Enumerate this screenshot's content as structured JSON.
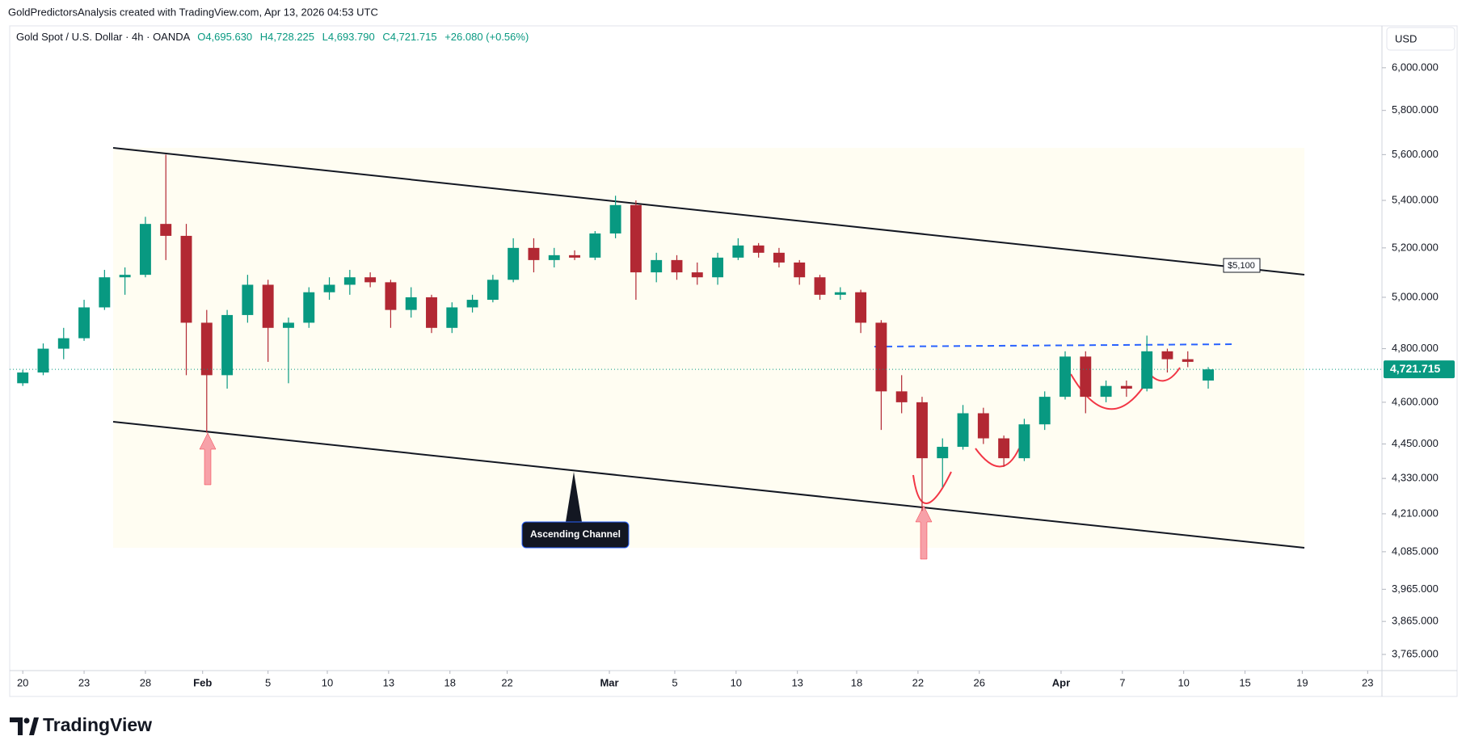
{
  "header": {
    "caption": "GoldPredictorsAnalysis created with TradingView.com, Apr 13, 2026 04:53 UTC",
    "symbol": "Gold Spot / U.S. Dollar · 4h · OANDA",
    "open": "O4,695.630",
    "high": "H4,728.225",
    "low": "L4,693.790",
    "close": "C4,721.715",
    "change": "+26.080 (+0.56%)"
  },
  "chart_data": {
    "type": "candlestick",
    "currency": "USD",
    "log_scale": true,
    "grid": false,
    "up_color": "#089981",
    "down_color": "#b22833",
    "x": [
      0,
      1,
      2,
      3,
      4,
      5,
      6,
      7,
      8,
      9,
      10,
      11,
      12,
      13,
      14,
      15,
      16,
      17,
      18,
      19,
      20,
      21,
      22,
      23,
      24,
      25,
      26,
      27,
      28,
      29,
      30,
      31,
      32,
      33,
      34,
      35,
      36,
      37,
      38,
      39,
      40,
      41,
      42,
      43,
      44,
      45,
      46,
      47,
      48,
      49,
      50,
      51,
      52,
      53,
      54,
      55,
      56,
      57,
      58
    ],
    "open": [
      4670,
      4710,
      4800,
      4840,
      4960,
      5080,
      5090,
      5300,
      5250,
      4900,
      4700,
      4930,
      5050,
      4880,
      4900,
      5020,
      5050,
      5080,
      5060,
      4950,
      5000,
      4880,
      4960,
      4990,
      5070,
      5200,
      5150,
      5170,
      5160,
      5260,
      5380,
      5100,
      5150,
      5100,
      5080,
      5160,
      5210,
      5180,
      5140,
      5080,
      5010,
      5020,
      4900,
      4640,
      4600,
      4400,
      4440,
      4560,
      4470,
      4400,
      4520,
      4620,
      4770,
      4620,
      4660,
      4650,
      4790,
      4760,
      4680
    ],
    "high": [
      4720,
      4820,
      4880,
      4990,
      5110,
      5120,
      5330,
      5600,
      5300,
      4950,
      4950,
      5090,
      5070,
      4920,
      5040,
      5080,
      5110,
      5100,
      5070,
      5040,
      5010,
      4980,
      5010,
      5090,
      5240,
      5240,
      5200,
      5190,
      5270,
      5420,
      5400,
      5180,
      5170,
      5140,
      5180,
      5240,
      5220,
      5200,
      5150,
      5090,
      5040,
      5030,
      4910,
      4700,
      4620,
      4470,
      4590,
      4580,
      4480,
      4540,
      4640,
      4790,
      4790,
      4680,
      4680,
      4850,
      4800,
      4790,
      4730
    ],
    "low": [
      4660,
      4700,
      4760,
      4830,
      4950,
      5010,
      5080,
      5150,
      4700,
      4490,
      4650,
      4900,
      4750,
      4670,
      4880,
      4990,
      5010,
      5040,
      4880,
      4920,
      4860,
      4860,
      4940,
      4980,
      5060,
      5100,
      5120,
      5150,
      5150,
      5240,
      4990,
      5060,
      5070,
      5050,
      5050,
      5150,
      5160,
      5120,
      5050,
      4990,
      4990,
      4860,
      4500,
      4560,
      4220,
      4300,
      4430,
      4450,
      4370,
      4390,
      4500,
      4610,
      4560,
      4600,
      4620,
      4640,
      4710,
      4730,
      4650
    ],
    "close": [
      4710,
      4800,
      4840,
      4960,
      5080,
      5090,
      5300,
      5250,
      4900,
      4700,
      4930,
      5050,
      4880,
      4900,
      5020,
      5050,
      5080,
      5060,
      4950,
      5000,
      4880,
      4960,
      4990,
      5070,
      5200,
      5150,
      5170,
      5160,
      5260,
      5380,
      5100,
      5150,
      5100,
      5080,
      5160,
      5210,
      5180,
      5140,
      5080,
      5010,
      5020,
      4900,
      4640,
      4600,
      4400,
      4440,
      4560,
      4470,
      4400,
      4520,
      4620,
      4770,
      4620,
      4660,
      4650,
      4790,
      4760,
      4750,
      4721.715
    ],
    "last_price": {
      "value": 4721.715,
      "label": "4,721.715"
    },
    "xlim": [
      -0.64,
      66.5
    ],
    "xticks": [
      {
        "value": 0,
        "label": "20"
      },
      {
        "value": 3.0,
        "label": "23"
      },
      {
        "value": 6.0,
        "label": "28"
      },
      {
        "value": 8.8,
        "label": "Feb"
      },
      {
        "value": 12.0,
        "label": "5"
      },
      {
        "value": 14.9,
        "label": "10"
      },
      {
        "value": 17.9,
        "label": "13"
      },
      {
        "value": 20.9,
        "label": "18"
      },
      {
        "value": 23.7,
        "label": "22"
      },
      {
        "value": 28.7,
        "label": "Mar"
      },
      {
        "value": 31.9,
        "label": "5"
      },
      {
        "value": 34.9,
        "label": "10"
      },
      {
        "value": 37.9,
        "label": "13"
      },
      {
        "value": 40.8,
        "label": "18"
      },
      {
        "value": 43.8,
        "label": "22"
      },
      {
        "value": 46.8,
        "label": "26"
      },
      {
        "value": 50.8,
        "label": "Apr"
      },
      {
        "value": 53.8,
        "label": "7"
      },
      {
        "value": 56.8,
        "label": "10"
      },
      {
        "value": 59.8,
        "label": "15"
      },
      {
        "value": 62.6,
        "label": "19"
      },
      {
        "value": 65.8,
        "label": "23"
      }
    ],
    "ylim": [
      3717,
      6203
    ],
    "yticks": [
      {
        "value": 3765,
        "label": "3,765.000"
      },
      {
        "value": 3865,
        "label": "3,865.000"
      },
      {
        "value": 3965,
        "label": "3,965.000"
      },
      {
        "value": 4085,
        "label": "4,085.000"
      },
      {
        "value": 4210,
        "label": "4,210.000"
      },
      {
        "value": 4330,
        "label": "4,330.000"
      },
      {
        "value": 4450,
        "label": "4,450.000"
      },
      {
        "value": 4600,
        "label": "4,600.000"
      },
      {
        "value": 4800,
        "label": "4,800.000"
      },
      {
        "value": 5000,
        "label": "5,000.000"
      },
      {
        "value": 5200,
        "label": "5,200.000"
      },
      {
        "value": 5400,
        "label": "5,400.000"
      },
      {
        "value": 5600,
        "label": "5,600.000"
      },
      {
        "value": 5800,
        "label": "5,800.000"
      },
      {
        "value": 6000,
        "label": "6,000.000"
      }
    ],
    "annotations": {
      "resistance": "$5,100",
      "channel": "Ascending Channel"
    }
  },
  "footer": {
    "brand": "TradingView"
  }
}
